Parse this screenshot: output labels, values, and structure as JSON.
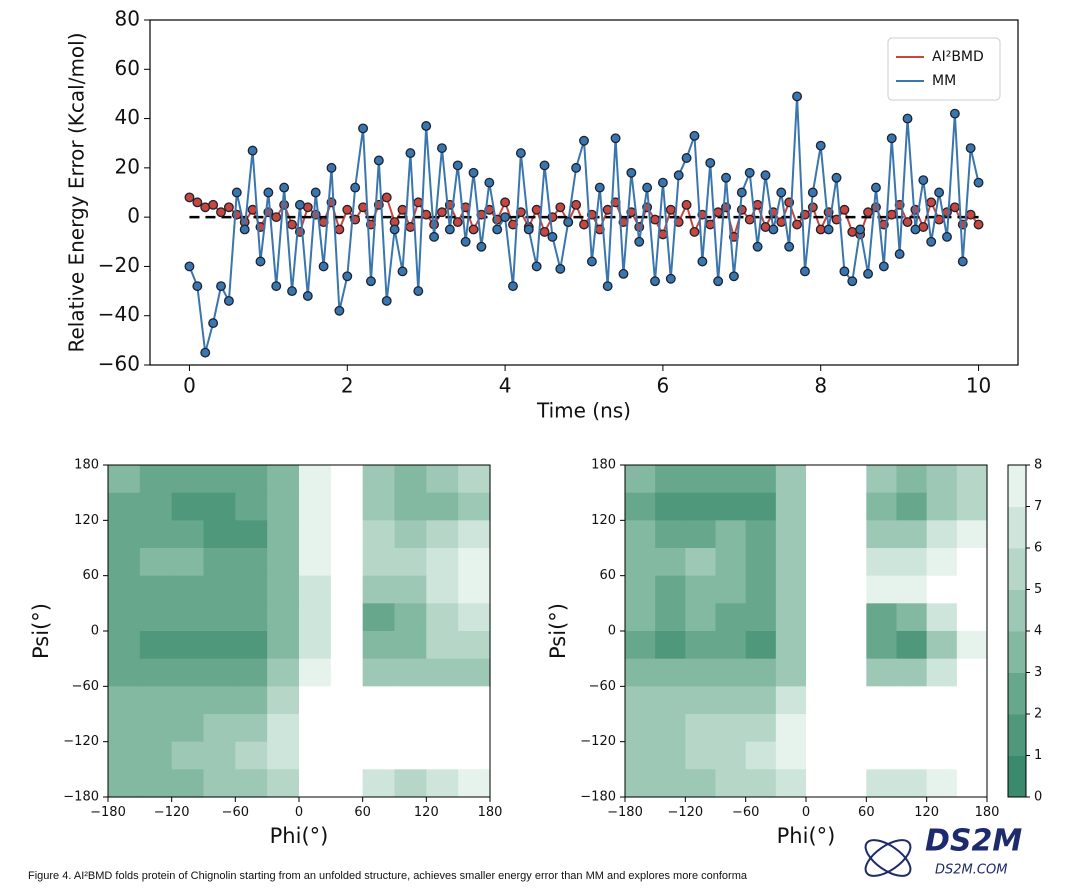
{
  "chart_data": [
    {
      "type": "line",
      "xlabel": "Time (ns)",
      "ylabel": "Relative Energy Error (Kcal/mol)",
      "xlim": [
        -0.5,
        10.5
      ],
      "ylim": [
        -60,
        80
      ],
      "xticks": [
        0,
        2,
        4,
        6,
        8,
        10
      ],
      "yticks": [
        {
          "value": -60,
          "label": "−60"
        },
        {
          "value": -40,
          "label": "−40"
        },
        {
          "value": -20,
          "label": "−20"
        },
        0,
        20,
        40,
        60,
        80
      ],
      "hline": 0,
      "legend": "upper right",
      "x": [
        0,
        0.1,
        0.2,
        0.3,
        0.4,
        0.5,
        0.6,
        0.7,
        0.8,
        0.9,
        1,
        1.1,
        1.2,
        1.3,
        1.4,
        1.5,
        1.6,
        1.7,
        1.8,
        1.9,
        2,
        2.1,
        2.2,
        2.3,
        2.4,
        2.5,
        2.6,
        2.7,
        2.8,
        2.9,
        3,
        3.1,
        3.2,
        3.3,
        3.4,
        3.5,
        3.6,
        3.7,
        3.8,
        3.9,
        4,
        4.1,
        4.2,
        4.3,
        4.4,
        4.5,
        4.6,
        4.7,
        4.8,
        4.9,
        5,
        5.1,
        5.2,
        5.3,
        5.4,
        5.5,
        5.6,
        5.7,
        5.8,
        5.9,
        6,
        6.1,
        6.2,
        6.3,
        6.4,
        6.5,
        6.6,
        6.7,
        6.8,
        6.9,
        7,
        7.1,
        7.2,
        7.3,
        7.4,
        7.5,
        7.6,
        7.7,
        7.8,
        7.9,
        8,
        8.1,
        8.2,
        8.3,
        8.4,
        8.5,
        8.6,
        8.7,
        8.8,
        8.9,
        9,
        9.1,
        9.2,
        9.3,
        9.4,
        9.5,
        9.6,
        9.7,
        9.8,
        9.9,
        10
      ],
      "series": [
        {
          "name": "AI²BMD",
          "color": "#c8463c",
          "values": [
            8,
            6,
            4,
            5,
            2,
            4,
            1,
            -2,
            3,
            -4,
            2,
            0,
            5,
            -3,
            -6,
            4,
            1,
            -2,
            6,
            -5,
            3,
            -1,
            4,
            -3,
            5,
            8,
            -2,
            3,
            -4,
            6,
            1,
            -3,
            2,
            5,
            -2,
            4,
            -5,
            1,
            3,
            -1,
            6,
            -3,
            2,
            -4,
            3,
            -6,
            0,
            4,
            -2,
            5,
            -3,
            1,
            -5,
            3,
            6,
            -2,
            2,
            -4,
            4,
            -1,
            -7,
            3,
            -2,
            5,
            -6,
            1,
            -3,
            2,
            4,
            -8,
            3,
            -1,
            5,
            -4,
            2,
            -2,
            6,
            -3,
            1,
            4,
            -5,
            2,
            -1,
            3,
            -6,
            -7,
            2,
            4,
            -3,
            1,
            5,
            -2,
            3,
            -4,
            6,
            -1,
            2,
            4,
            -3,
            1,
            -3
          ]
        },
        {
          "name": "MM",
          "color": "#3a76ae",
          "values": [
            -20,
            -28,
            -55,
            -43,
            -28,
            -34,
            10,
            -5,
            27,
            -18,
            10,
            -28,
            12,
            -30,
            5,
            -32,
            10,
            -20,
            20,
            -38,
            -24,
            12,
            36,
            -26,
            23,
            -34,
            -5,
            -22,
            26,
            -30,
            37,
            -8,
            28,
            -5,
            21,
            -10,
            18,
            -12,
            14,
            -5,
            0,
            -28,
            26,
            -5,
            -20,
            21,
            -8,
            -21,
            -2,
            20,
            31,
            -18,
            12,
            -28,
            32,
            -23,
            18,
            -10,
            12,
            -26,
            14,
            -25,
            17,
            24,
            33,
            -18,
            22,
            -26,
            16,
            -24,
            10,
            18,
            -12,
            17,
            -5,
            10,
            -12,
            49,
            -22,
            10,
            29,
            -5,
            16,
            -22,
            -26,
            -5,
            -23,
            12,
            -20,
            32,
            -15,
            40,
            -5,
            15,
            -10,
            10,
            -8,
            42,
            -18,
            28,
            14
          ]
        }
      ]
    },
    {
      "type": "heatmap",
      "xlabel": "Phi(°)",
      "ylabel": "Psi(°)",
      "xlim": [
        -180,
        180
      ],
      "ylim": [
        -180,
        180
      ],
      "xticks": [
        {
          "value": -180,
          "label": "−180"
        },
        {
          "value": -120,
          "label": "−120"
        },
        {
          "value": -60,
          "label": "−60"
        },
        0,
        60,
        120,
        180
      ],
      "yticks": [
        {
          "value": -180,
          "label": "−180"
        },
        {
          "value": -120,
          "label": "−120"
        },
        {
          "value": -60,
          "label": "−60"
        },
        0,
        60,
        120,
        180
      ],
      "colors": [
        "#3a8a6e",
        "#4f987c",
        "#67a78c",
        "#83b8a1",
        "#9dc8b5",
        "#b6d7c8",
        "#cde5da",
        "#e6f2ec",
        "#ffffff"
      ],
      "z": [
        [
          3,
          2,
          2,
          2,
          2,
          3,
          7,
          8,
          4,
          3,
          4,
          5
        ],
        [
          2,
          2,
          1,
          1,
          2,
          3,
          7,
          8,
          4,
          3,
          3,
          4
        ],
        [
          2,
          2,
          2,
          1,
          1,
          3,
          7,
          8,
          5,
          4,
          5,
          6
        ],
        [
          2,
          3,
          3,
          2,
          2,
          3,
          7,
          8,
          5,
          5,
          6,
          7
        ],
        [
          2,
          2,
          2,
          2,
          2,
          3,
          6,
          8,
          4,
          4,
          6,
          7
        ],
        [
          2,
          2,
          2,
          2,
          2,
          3,
          6,
          8,
          2,
          3,
          5,
          6
        ],
        [
          2,
          1,
          1,
          1,
          1,
          3,
          6,
          8,
          3,
          3,
          5,
          5
        ],
        [
          2,
          2,
          2,
          2,
          2,
          4,
          7,
          8,
          4,
          4,
          4,
          4
        ],
        [
          3,
          3,
          3,
          3,
          3,
          5,
          8,
          8,
          8,
          8,
          8,
          8
        ],
        [
          3,
          3,
          3,
          4,
          4,
          6,
          8,
          8,
          8,
          8,
          8,
          8
        ],
        [
          3,
          3,
          4,
          4,
          5,
          6,
          8,
          8,
          8,
          8,
          8,
          8
        ],
        [
          3,
          3,
          3,
          4,
          4,
          5,
          8,
          8,
          6,
          5,
          6,
          7
        ]
      ]
    },
    {
      "type": "heatmap",
      "xlabel": "Phi(°)",
      "ylabel": "Psi(°)",
      "xlim": [
        -180,
        180
      ],
      "ylim": [
        -180,
        180
      ],
      "xticks": [
        {
          "value": -180,
          "label": "−180"
        },
        {
          "value": -120,
          "label": "−120"
        },
        {
          "value": -60,
          "label": "−60"
        },
        0,
        60,
        120,
        180
      ],
      "yticks": [
        {
          "value": -180,
          "label": "−180"
        },
        {
          "value": -120,
          "label": "−120"
        },
        {
          "value": -60,
          "label": "−60"
        },
        0,
        60,
        120,
        180
      ],
      "colors": [
        "#3a8a6e",
        "#4f987c",
        "#67a78c",
        "#83b8a1",
        "#9dc8b5",
        "#b6d7c8",
        "#cde5da",
        "#e6f2ec",
        "#ffffff"
      ],
      "z": [
        [
          3,
          2,
          2,
          2,
          2,
          4,
          8,
          8,
          4,
          3,
          4,
          5
        ],
        [
          2,
          1,
          1,
          1,
          1,
          4,
          8,
          8,
          3,
          2,
          4,
          5
        ],
        [
          3,
          2,
          2,
          3,
          2,
          4,
          8,
          8,
          4,
          4,
          6,
          7
        ],
        [
          3,
          3,
          4,
          3,
          2,
          4,
          8,
          8,
          6,
          6,
          7,
          8
        ],
        [
          3,
          2,
          3,
          3,
          2,
          4,
          8,
          8,
          7,
          7,
          8,
          8
        ],
        [
          3,
          2,
          3,
          2,
          2,
          4,
          8,
          8,
          2,
          3,
          6,
          8
        ],
        [
          2,
          1,
          2,
          2,
          1,
          4,
          8,
          8,
          2,
          1,
          4,
          7
        ],
        [
          3,
          3,
          3,
          3,
          3,
          4,
          8,
          8,
          4,
          4,
          6,
          8
        ],
        [
          4,
          4,
          4,
          4,
          4,
          6,
          8,
          8,
          8,
          8,
          8,
          8
        ],
        [
          4,
          4,
          5,
          5,
          5,
          7,
          8,
          8,
          8,
          8,
          8,
          8
        ],
        [
          4,
          4,
          5,
          5,
          6,
          7,
          8,
          8,
          8,
          8,
          8,
          8
        ],
        [
          4,
          4,
          4,
          5,
          5,
          6,
          8,
          8,
          6,
          6,
          7,
          8
        ]
      ],
      "colorbar": {
        "lim": [
          0,
          8
        ],
        "ticks": [
          0,
          1,
          2,
          3,
          4,
          5,
          6,
          7,
          8
        ]
      }
    }
  ],
  "caption": "Figure 4. AI²BMD folds protein of Chignolin starting from an unfolded structure, achieves smaller energy error than MM and explores more conforma",
  "watermark": {
    "logo": "DS2M",
    "site": "DS2M.COM"
  }
}
